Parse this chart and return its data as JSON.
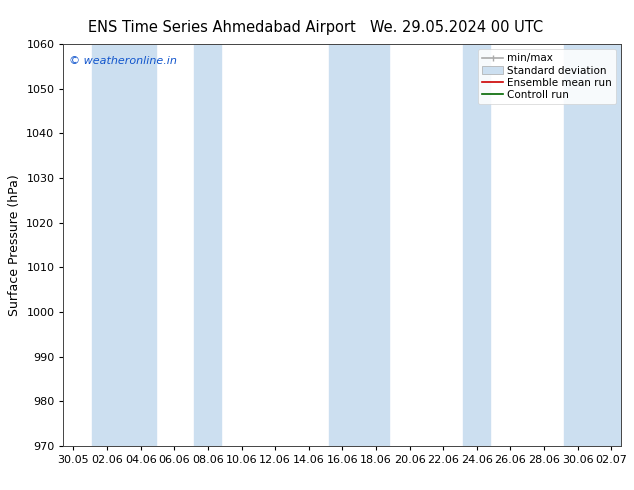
{
  "title_left": "ENS Time Series Ahmedabad Airport",
  "title_right": "We. 29.05.2024 00 UTC",
  "ylabel": "Surface Pressure (hPa)",
  "ylim": [
    970,
    1060
  ],
  "yticks": [
    970,
    980,
    990,
    1000,
    1010,
    1020,
    1030,
    1040,
    1050,
    1060
  ],
  "xtick_labels": [
    "30.05",
    "02.06",
    "04.06",
    "06.06",
    "08.06",
    "10.06",
    "12.06",
    "14.06",
    "16.06",
    "18.06",
    "20.06",
    "22.06",
    "24.06",
    "26.06",
    "28.06",
    "30.06",
    "02.07"
  ],
  "copyright": "© weatheronline.in",
  "copyright_color": "#1155cc",
  "background_color": "#ffffff",
  "plot_bg_color": "#ffffff",
  "band_color": "#ccdff0",
  "legend_items": [
    {
      "label": "min/max",
      "color": "#aaaaaa",
      "lw": 1.2
    },
    {
      "label": "Standard deviation",
      "color": "#bbccdd",
      "lw": 8
    },
    {
      "label": "Ensemble mean run",
      "color": "#cc0000",
      "lw": 1.2
    },
    {
      "label": "Controll run",
      "color": "#006600",
      "lw": 1.2
    }
  ],
  "spine_color": "#444444",
  "title_fontsize": 10.5,
  "ylabel_fontsize": 9,
  "tick_fontsize": 8,
  "legend_fontsize": 7.5
}
